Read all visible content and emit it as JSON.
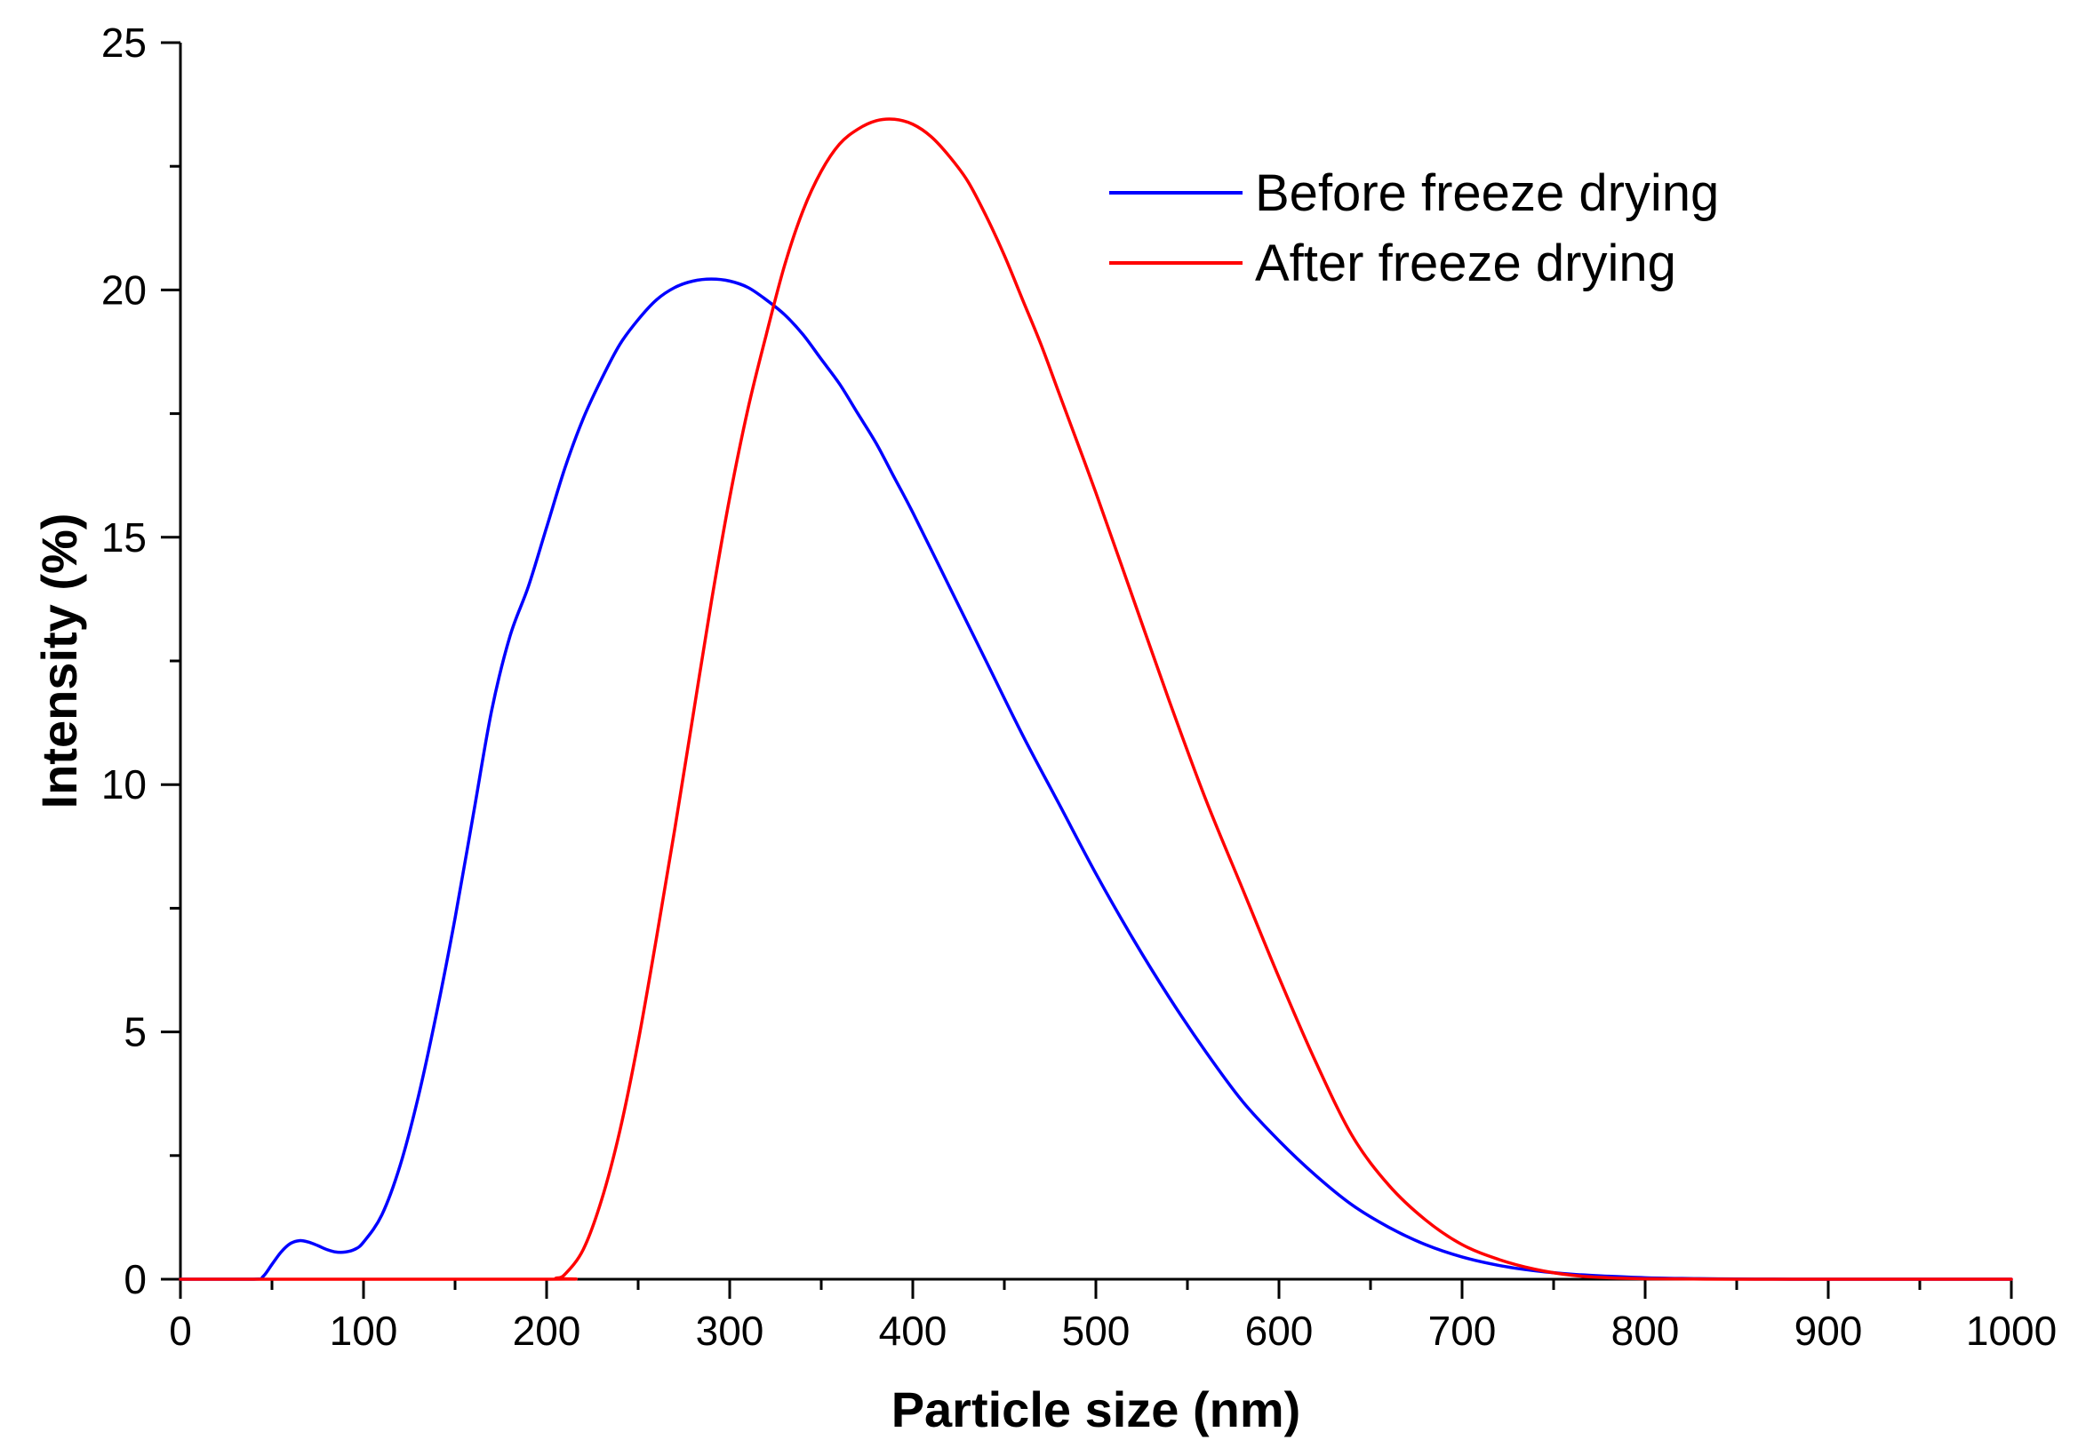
{
  "chart_data": {
    "type": "line",
    "title": "",
    "xlabel": "Particle size (nm)",
    "ylabel": "Intensity (%)",
    "xlim": [
      0,
      1000
    ],
    "ylim": [
      0,
      25
    ],
    "x_ticks": [
      "0",
      "100",
      "200",
      "300",
      "400",
      "500",
      "600",
      "700",
      "800",
      "900",
      "1000"
    ],
    "y_ticks": [
      "0",
      "5",
      "10",
      "15",
      "20",
      "25"
    ],
    "grid": false,
    "legend_position": "top-right",
    "series": [
      {
        "name": "Before freeze drying",
        "color": "#0000ff",
        "x": [
          0,
          40,
          45,
          50,
          55,
          60,
          65,
          70,
          75,
          80,
          85,
          90,
          95,
          100,
          110,
          120,
          130,
          140,
          150,
          160,
          170,
          180,
          190,
          200,
          210,
          220,
          230,
          240,
          250,
          260,
          270,
          280,
          290,
          300,
          310,
          320,
          330,
          340,
          350,
          360,
          370,
          380,
          390,
          400,
          420,
          440,
          460,
          480,
          500,
          520,
          540,
          560,
          580,
          600,
          620,
          640,
          660,
          680,
          700,
          720,
          740,
          760,
          780,
          800,
          820,
          840,
          860,
          880,
          900,
          950,
          1000
        ],
        "y": [
          0,
          0,
          0.05,
          0.3,
          0.55,
          0.72,
          0.78,
          0.75,
          0.68,
          0.6,
          0.55,
          0.55,
          0.6,
          0.75,
          1.3,
          2.3,
          3.7,
          5.4,
          7.3,
          9.4,
          11.5,
          13.0,
          14.0,
          15.2,
          16.4,
          17.4,
          18.2,
          18.9,
          19.4,
          19.8,
          20.05,
          20.18,
          20.22,
          20.18,
          20.05,
          19.8,
          19.5,
          19.1,
          18.6,
          18.1,
          17.5,
          16.9,
          16.2,
          15.5,
          14.0,
          12.5,
          11.0,
          9.6,
          8.2,
          6.9,
          5.7,
          4.6,
          3.6,
          2.8,
          2.1,
          1.5,
          1.05,
          0.7,
          0.45,
          0.28,
          0.17,
          0.1,
          0.06,
          0.03,
          0.015,
          0.007,
          0.003,
          0.001,
          0,
          0,
          0
        ]
      },
      {
        "name": "After freeze drying",
        "color": "#ff0000",
        "x": [
          0,
          200,
          205,
          210,
          220,
          230,
          240,
          250,
          260,
          270,
          280,
          290,
          300,
          310,
          320,
          330,
          340,
          350,
          360,
          370,
          380,
          390,
          400,
          410,
          420,
          430,
          440,
          450,
          460,
          470,
          480,
          500,
          520,
          540,
          560,
          580,
          600,
          620,
          640,
          660,
          680,
          700,
          720,
          740,
          760,
          780,
          800,
          850,
          900,
          950,
          1000
        ],
        "y": [
          0,
          0,
          0.02,
          0.1,
          0.6,
          1.6,
          3.0,
          4.8,
          6.9,
          9.1,
          11.4,
          13.7,
          15.8,
          17.6,
          19.1,
          20.5,
          21.6,
          22.4,
          22.95,
          23.25,
          23.42,
          23.45,
          23.35,
          23.1,
          22.7,
          22.2,
          21.5,
          20.7,
          19.8,
          18.9,
          17.9,
          15.9,
          13.8,
          11.7,
          9.7,
          7.9,
          6.1,
          4.4,
          2.9,
          1.9,
          1.2,
          0.7,
          0.4,
          0.2,
          0.08,
          0.03,
          0.01,
          0,
          0,
          0,
          0
        ]
      }
    ]
  }
}
